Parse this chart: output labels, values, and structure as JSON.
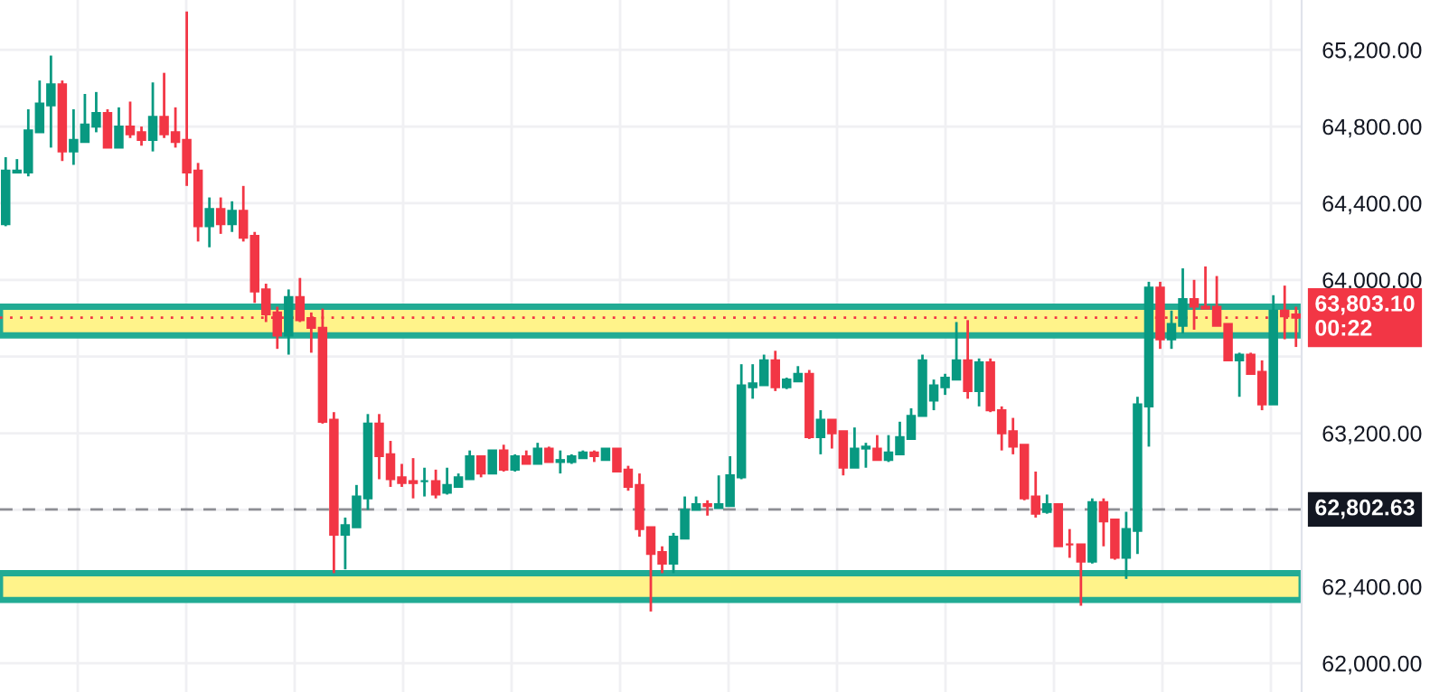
{
  "chart_data": {
    "type": "candlestick",
    "categories": [
      null,
      null,
      null,
      null,
      null,
      null,
      null,
      null,
      null,
      null,
      null,
      null,
      null,
      null,
      null,
      null,
      null,
      null,
      null,
      null,
      null,
      null,
      null,
      null,
      null,
      null,
      null,
      null,
      null,
      null,
      null,
      null,
      null,
      null,
      null,
      null,
      null,
      null,
      null,
      null,
      null,
      null,
      null,
      null,
      null,
      null,
      null,
      null,
      null,
      null,
      null,
      null,
      null,
      null,
      null,
      null,
      null,
      null,
      null,
      null,
      null,
      null,
      null,
      null,
      null,
      null,
      null,
      null,
      null,
      null,
      null,
      null,
      null,
      null,
      null,
      null,
      null,
      null,
      null,
      null,
      null,
      null,
      null,
      null,
      null,
      null,
      null,
      null,
      null,
      null,
      null,
      null,
      null,
      null,
      null,
      null,
      null,
      null,
      null,
      null,
      null,
      null,
      null,
      null,
      null,
      null,
      null,
      null,
      null,
      null,
      null,
      null,
      null,
      null,
      null
    ],
    "ohlc": [
      [
        64290,
        64640,
        64280,
        64570
      ],
      [
        64560,
        64630,
        64560,
        64570
      ],
      [
        64560,
        64890,
        64540,
        64780
      ],
      [
        64770,
        65040,
        64770,
        64920
      ],
      [
        64910,
        65170,
        64690,
        65020
      ],
      [
        65020,
        65040,
        64620,
        64670
      ],
      [
        64670,
        64890,
        64600,
        64730
      ],
      [
        64720,
        64970,
        64720,
        64810
      ],
      [
        64800,
        64980,
        64770,
        64870
      ],
      [
        64870,
        64890,
        64690,
        64690
      ],
      [
        64690,
        64900,
        64690,
        64800
      ],
      [
        64800,
        64930,
        64740,
        64760
      ],
      [
        64770,
        64800,
        64700,
        64730
      ],
      [
        64730,
        65030,
        64670,
        64850
      ],
      [
        64850,
        65080,
        64740,
        64760
      ],
      [
        64770,
        64900,
        64690,
        64720
      ],
      [
        64730,
        65400,
        64490,
        64560
      ],
      [
        64570,
        64610,
        64200,
        64280
      ],
      [
        64280,
        64430,
        64170,
        64370
      ],
      [
        64370,
        64430,
        64240,
        64290
      ],
      [
        64290,
        64410,
        64250,
        64360
      ],
      [
        64360,
        64490,
        64200,
        64220
      ],
      [
        64230,
        64250,
        63880,
        63940
      ],
      [
        63950,
        63980,
        63780,
        63820
      ],
      [
        63830,
        63860,
        63640,
        63710
      ],
      [
        63710,
        63950,
        63610,
        63910
      ],
      [
        63910,
        64010,
        63780,
        63790
      ],
      [
        63800,
        63830,
        63620,
        63750
      ],
      [
        63750,
        63850,
        63250,
        63260
      ],
      [
        63270,
        63310,
        62470,
        62670
      ],
      [
        62670,
        62760,
        62490,
        62720
      ],
      [
        62710,
        62930,
        62710,
        62870
      ],
      [
        62860,
        63300,
        62800,
        63250
      ],
      [
        63250,
        63300,
        62960,
        63080
      ],
      [
        63090,
        63160,
        62920,
        62960
      ],
      [
        62970,
        63040,
        62920,
        62940
      ],
      [
        62950,
        63070,
        62860,
        62940
      ],
      [
        62950,
        63020,
        62870,
        62950
      ],
      [
        62950,
        63010,
        62860,
        62880
      ],
      [
        62890,
        63020,
        62880,
        62930
      ],
      [
        62920,
        62990,
        62920,
        62970
      ],
      [
        62960,
        63110,
        62960,
        63080
      ],
      [
        63080,
        63080,
        62970,
        62990
      ],
      [
        62990,
        63110,
        62990,
        63110
      ],
      [
        63110,
        63140,
        63000,
        63010
      ],
      [
        63010,
        63090,
        63000,
        63080
      ],
      [
        63080,
        63110,
        63040,
        63040
      ],
      [
        63040,
        63150,
        63040,
        63120
      ],
      [
        63120,
        63130,
        63050,
        63050
      ],
      [
        63050,
        63110,
        62990,
        63060
      ],
      [
        63050,
        63090,
        63040,
        63080
      ],
      [
        63070,
        63110,
        63070,
        63100
      ],
      [
        63100,
        63110,
        63050,
        63080
      ],
      [
        63060,
        63120,
        63060,
        63120
      ],
      [
        63120,
        63120,
        63000,
        63000
      ],
      [
        63010,
        63030,
        62900,
        62920
      ],
      [
        62930,
        62990,
        62660,
        62700
      ],
      [
        62710,
        62710,
        62270,
        62570
      ],
      [
        62580,
        62610,
        62470,
        62520
      ],
      [
        62520,
        62680,
        62470,
        62660
      ],
      [
        62650,
        62870,
        62650,
        62800
      ],
      [
        62800,
        62870,
        62800,
        62830
      ],
      [
        62830,
        62850,
        62770,
        62820
      ],
      [
        62810,
        62980,
        62810,
        62830
      ],
      [
        62820,
        63080,
        62820,
        62980
      ],
      [
        62970,
        63560,
        62960,
        63450
      ],
      [
        63440,
        63560,
        63380,
        63460
      ],
      [
        63450,
        63610,
        63450,
        63580
      ],
      [
        63580,
        63630,
        63420,
        63440
      ],
      [
        63440,
        63490,
        63430,
        63480
      ],
      [
        63470,
        63550,
        63470,
        63510
      ],
      [
        63510,
        63530,
        63170,
        63180
      ],
      [
        63180,
        63320,
        63090,
        63270
      ],
      [
        63270,
        63270,
        63120,
        63200
      ],
      [
        63210,
        63210,
        62980,
        63020
      ],
      [
        63020,
        63230,
        63020,
        63120
      ],
      [
        63120,
        63150,
        63020,
        63130
      ],
      [
        63120,
        63190,
        63060,
        63060
      ],
      [
        63060,
        63190,
        63050,
        63100
      ],
      [
        63090,
        63260,
        63090,
        63180
      ],
      [
        63170,
        63330,
        63170,
        63290
      ],
      [
        63290,
        63610,
        63290,
        63580
      ],
      [
        63370,
        63480,
        63320,
        63450
      ],
      [
        63440,
        63510,
        63400,
        63490
      ],
      [
        63480,
        63780,
        63480,
        63580
      ],
      [
        63580,
        63790,
        63380,
        63420
      ],
      [
        63420,
        63590,
        63340,
        63570
      ],
      [
        63570,
        63590,
        63310,
        63320
      ],
      [
        63320,
        63340,
        63110,
        63200
      ],
      [
        63210,
        63280,
        63090,
        63130
      ],
      [
        63140,
        63140,
        62850,
        62860
      ],
      [
        62870,
        63000,
        62760,
        62780
      ],
      [
        62790,
        62880,
        62780,
        62830
      ],
      [
        62830,
        62830,
        62610,
        62610
      ],
      [
        62620,
        62700,
        62550,
        62620
      ],
      [
        62620,
        62620,
        62300,
        62530
      ],
      [
        62530,
        62860,
        62520,
        62840
      ],
      [
        62840,
        62860,
        62610,
        62740
      ],
      [
        62750,
        62750,
        62540,
        62550
      ],
      [
        62550,
        62790,
        62440,
        62700
      ],
      [
        62690,
        63390,
        62570,
        63350
      ],
      [
        63340,
        63990,
        63130,
        63960
      ],
      [
        63960,
        63990,
        63640,
        63690
      ],
      [
        63690,
        63840,
        63640,
        63770
      ],
      [
        63760,
        64060,
        63720,
        63900
      ],
      [
        63900,
        64000,
        63740,
        63860
      ],
      [
        63860,
        64070,
        63850,
        63850
      ],
      [
        63860,
        64020,
        63760,
        63760
      ],
      [
        63770,
        63770,
        63580,
        63580
      ],
      [
        63580,
        63620,
        63390,
        63610
      ],
      [
        63610,
        63620,
        63510,
        63510
      ],
      [
        63520,
        63580,
        63320,
        63350
      ],
      [
        63350,
        63920,
        63350,
        63840
      ],
      [
        63840,
        63970,
        63690,
        63810
      ],
      [
        63820,
        63860,
        63650,
        63803.1
      ]
    ],
    "colors": [
      "#089981",
      "#089981",
      "#089981",
      "#089981",
      "#089981",
      "#f23645",
      "#089981",
      "#089981",
      "#089981",
      "#f23645",
      "#089981",
      "#f23645",
      "#f23645",
      "#089981",
      "#f23645",
      "#f23645",
      "#f23645",
      "#f23645",
      "#089981",
      "#f23645",
      "#089981",
      "#f23645",
      "#f23645",
      "#f23645",
      "#f23645",
      "#089981",
      "#f23645",
      "#f23645",
      "#f23645",
      "#f23645",
      "#089981",
      "#089981",
      "#089981",
      "#f23645",
      "#f23645",
      "#f23645",
      "#f23645",
      "#089981",
      "#f23645",
      "#089981",
      "#089981",
      "#089981",
      "#f23645",
      "#089981",
      "#f23645",
      "#089981",
      "#f23645",
      "#089981",
      "#f23645",
      "#089981",
      "#089981",
      "#089981",
      "#f23645",
      "#089981",
      "#f23645",
      "#f23645",
      "#f23645",
      "#f23645",
      "#f23645",
      "#089981",
      "#089981",
      "#089981",
      "#f23645",
      "#089981",
      "#089981",
      "#089981",
      "#089981",
      "#089981",
      "#f23645",
      "#089981",
      "#089981",
      "#f23645",
      "#089981",
      "#f23645",
      "#f23645",
      "#089981",
      "#089981",
      "#f23645",
      "#089981",
      "#089981",
      "#089981",
      "#089981",
      "#089981",
      "#089981",
      "#089981",
      "#f23645",
      "#089981",
      "#f23645",
      "#f23645",
      "#f23645",
      "#f23645",
      "#f23645",
      "#089981",
      "#f23645",
      "#f23645",
      "#f23645",
      "#089981",
      "#f23645",
      "#f23645",
      "#089981",
      "#089981",
      "#089981",
      "#f23645",
      "#089981",
      "#089981",
      "#f23645",
      "#f23645",
      "#f23645",
      "#f23645",
      "#089981",
      "#f23645",
      "#f23645",
      "#089981",
      "#f23645",
      "#f23645"
    ],
    "ylim": [
      61850,
      65460
    ],
    "yticks": [
      {
        "value": 62000,
        "label": "62,000.00"
      },
      {
        "value": 62400,
        "label": "62,400.00"
      },
      {
        "value": 62800,
        "label": null
      },
      {
        "value": 63200,
        "label": "63,200.00"
      },
      {
        "value": 63600,
        "label": null
      },
      {
        "value": 64000,
        "label": "64,000.00"
      },
      {
        "value": 64400,
        "label": "64,400.00"
      },
      {
        "value": 64800,
        "label": "64,800.00"
      },
      {
        "value": 65200,
        "label": "65,200.00"
      }
    ],
    "tick_labels": "y",
    "grid": true,
    "bands": [
      {
        "axis": "y",
        "from": 63710,
        "to": 63860,
        "color": "#fff38a"
      },
      {
        "axis": "y",
        "from": 62330,
        "to": 62470,
        "color": "#fff38a"
      }
    ],
    "ref_lines": [
      {
        "axis": "y",
        "value": 63803.1,
        "label": "63,803.10\n00:22",
        "color": "#f23645",
        "line_style": "dotted"
      },
      {
        "axis": "y",
        "value": 62802.63,
        "label": "62,802.63",
        "color": "#131722",
        "line_style": "dashed"
      }
    ]
  }
}
